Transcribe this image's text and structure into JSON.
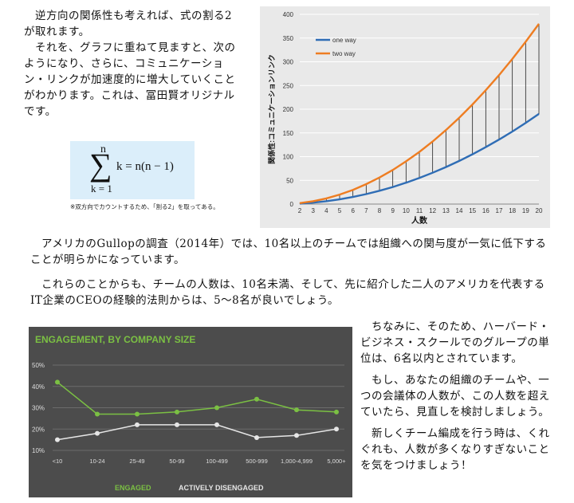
{
  "text": {
    "p1_1": "逆方向の関係性も考えれば、式の割る2が取れます。",
    "p1_2": "それを、グラフに重ねて見ますと、次のようになり、さらに、コミュニケーション・リンクが加速度的に増大していくことがわかります。これは、冨田賢オリジナルです。",
    "p2": "アメリカのGullopの調査（2014年）では、10名以上のチームでは組織への関与度が一気に低下することが明らかになっています。",
    "p3": "これらのことからも、チームの人数は、10名未満、そして、先に紹介した二人のアメリカを代表するIT企業のCEOの経験的法則からは、5〜8名が良いでしょう。",
    "p4_1": "ちなみに、そのため、ハーバード・ビジネス・スクールでのグループの単位は、6名以内とされています。",
    "p4_2": "もし、あなたの組織のチームや、一つの会議体の人数が、この人数を超えていたら、見直しを検討しましょう。",
    "p4_3": "新しくチーム編成を行う時は、くれぐれも、人数が多くなりすぎないことを気をつけましょう！"
  },
  "formula": {
    "upper": "n",
    "sigma": "∑",
    "lower": "k = 1",
    "rhs": "k = n(n − 1)",
    "note": "※双方向でカウントするため、「割る2」を取ってある。"
  },
  "chart_data": [
    {
      "type": "line",
      "title": "",
      "xlabel": "人数",
      "ylabel": "関係性:コミュニケーションリンク",
      "x": [
        2,
        3,
        4,
        5,
        6,
        7,
        8,
        9,
        10,
        11,
        12,
        13,
        14,
        15,
        16,
        17,
        18,
        19,
        20
      ],
      "ylim": [
        0,
        400
      ],
      "yticks": [
        0,
        50,
        100,
        150,
        200,
        250,
        300,
        350,
        400
      ],
      "grid": true,
      "legend": "top-left",
      "series": [
        {
          "name": "one way",
          "color": "#2f6db5",
          "values": [
            1,
            3,
            6,
            10,
            15,
            21,
            28,
            36,
            45,
            55,
            66,
            78,
            91,
            105,
            120,
            136,
            153,
            171,
            190
          ]
        },
        {
          "name": "two way",
          "color": "#ee7d22",
          "values": [
            2,
            6,
            12,
            20,
            30,
            42,
            56,
            72,
            90,
            110,
            132,
            156,
            182,
            210,
            240,
            272,
            306,
            342,
            380
          ]
        }
      ]
    },
    {
      "type": "line",
      "title": "ENGAGEMENT, BY COMPANY SIZE",
      "categories": [
        "<10",
        "10-24",
        "25-49",
        "50-99",
        "100-499",
        "500-999",
        "1,000-4,999",
        "5,000+"
      ],
      "ylim": [
        10,
        50
      ],
      "yticks": [
        "10%",
        "20%",
        "30%",
        "40%",
        "50%"
      ],
      "grid": true,
      "legend": "bottom",
      "series": [
        {
          "name": "ENGAGED",
          "color": "#7bc043",
          "values": [
            42,
            27,
            27,
            28,
            30,
            34,
            29,
            28
          ]
        },
        {
          "name": "ACTIVELY DISENGAGED",
          "color": "#e6e6e6",
          "values": [
            15,
            18,
            22,
            22,
            22,
            16,
            17,
            20
          ]
        }
      ]
    }
  ]
}
